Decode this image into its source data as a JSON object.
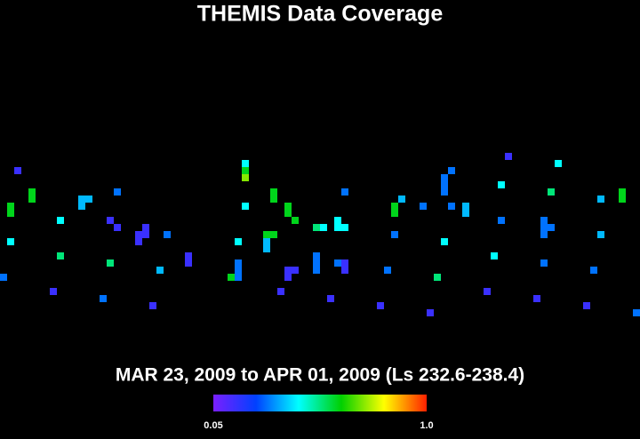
{
  "chart_data": {
    "type": "heatmap",
    "title": "THEMIS Data Coverage",
    "subtitle": "MAR 23, 2009 to APR 01, 2009 (Ls 232.6-238.4)",
    "xlim": [
      0,
      90
    ],
    "ylim": [
      0,
      61
    ],
    "colormap": [
      "#7a1fff",
      "#0040ff",
      "#00ffff",
      "#00d000",
      "#ffff00",
      "#ff2000"
    ],
    "colorbar_lim": [
      0.05,
      1
    ],
    "colorbar_ticks": [
      0.05,
      {
        "value": 1,
        "label": "1.0"
      }
    ],
    "cells": {
      "x": [
        2,
        4,
        4,
        1,
        1,
        8,
        1,
        8,
        0,
        7,
        11,
        12,
        11,
        16,
        15,
        16,
        20,
        19,
        20,
        19,
        23,
        15,
        22,
        26,
        26,
        14,
        21,
        34,
        34,
        34,
        34,
        38,
        38,
        40,
        40,
        41,
        33,
        37,
        38,
        37,
        37,
        33,
        33,
        32,
        33,
        40,
        41,
        40,
        39,
        44,
        45,
        47,
        47,
        48,
        48,
        44,
        44,
        44,
        47,
        48,
        48,
        46,
        54,
        53,
        56,
        55,
        55,
        59,
        55,
        61,
        60,
        63,
        62,
        62,
        62,
        63,
        65,
        65,
        62,
        70,
        71,
        70,
        69,
        68,
        78,
        77,
        76,
        76,
        76,
        77,
        76,
        75,
        84,
        87,
        87,
        84,
        83,
        82,
        89
      ],
      "y": [
        23,
        26,
        27,
        28,
        29,
        30,
        33,
        35,
        38,
        40,
        27,
        27,
        28,
        26,
        30,
        31,
        31,
        32,
        32,
        33,
        32,
        36,
        37,
        35,
        36,
        41,
        42,
        22,
        23,
        24,
        28,
        26,
        27,
        28,
        29,
        30,
        33,
        32,
        32,
        33,
        34,
        36,
        37,
        38,
        38,
        37,
        37,
        38,
        40,
        31,
        31,
        30,
        31,
        31,
        26,
        35,
        36,
        37,
        36,
        36,
        37,
        41,
        37,
        42,
        27,
        28,
        29,
        28,
        32,
        38,
        43,
        23,
        24,
        25,
        26,
        28,
        28,
        29,
        33,
        25,
        21,
        30,
        35,
        40,
        22,
        26,
        30,
        31,
        32,
        31,
        36,
        41,
        27,
        26,
        27,
        32,
        37,
        42,
        43
      ],
      "values": [
        0.15,
        0.6,
        0.6,
        0.6,
        0.6,
        0.43,
        0.43,
        0.53,
        0.29,
        0.15,
        0.36,
        0.36,
        0.36,
        0.29,
        0.15,
        0.15,
        0.15,
        0.15,
        0.15,
        0.15,
        0.29,
        0.53,
        0.36,
        0.15,
        0.15,
        0.29,
        0.15,
        0.43,
        0.6,
        0.72,
        0.43,
        0.6,
        0.6,
        0.6,
        0.6,
        0.6,
        0.43,
        0.6,
        0.6,
        0.36,
        0.36,
        0.29,
        0.29,
        0.6,
        0.29,
        0.15,
        0.15,
        0.15,
        0.15,
        0.53,
        0.43,
        0.43,
        0.43,
        0.43,
        0.29,
        0.29,
        0.29,
        0.29,
        0.29,
        0.15,
        0.15,
        0.15,
        0.29,
        0.15,
        0.36,
        0.6,
        0.6,
        0.29,
        0.29,
        0.53,
        0.15,
        0.29,
        0.29,
        0.29,
        0.29,
        0.29,
        0.36,
        0.36,
        0.43,
        0.43,
        0.15,
        0.29,
        0.43,
        0.15,
        0.43,
        0.53,
        0.29,
        0.29,
        0.29,
        0.29,
        0.29,
        0.15,
        0.36,
        0.6,
        0.6,
        0.36,
        0.29,
        0.15,
        0.29
      ]
    }
  }
}
